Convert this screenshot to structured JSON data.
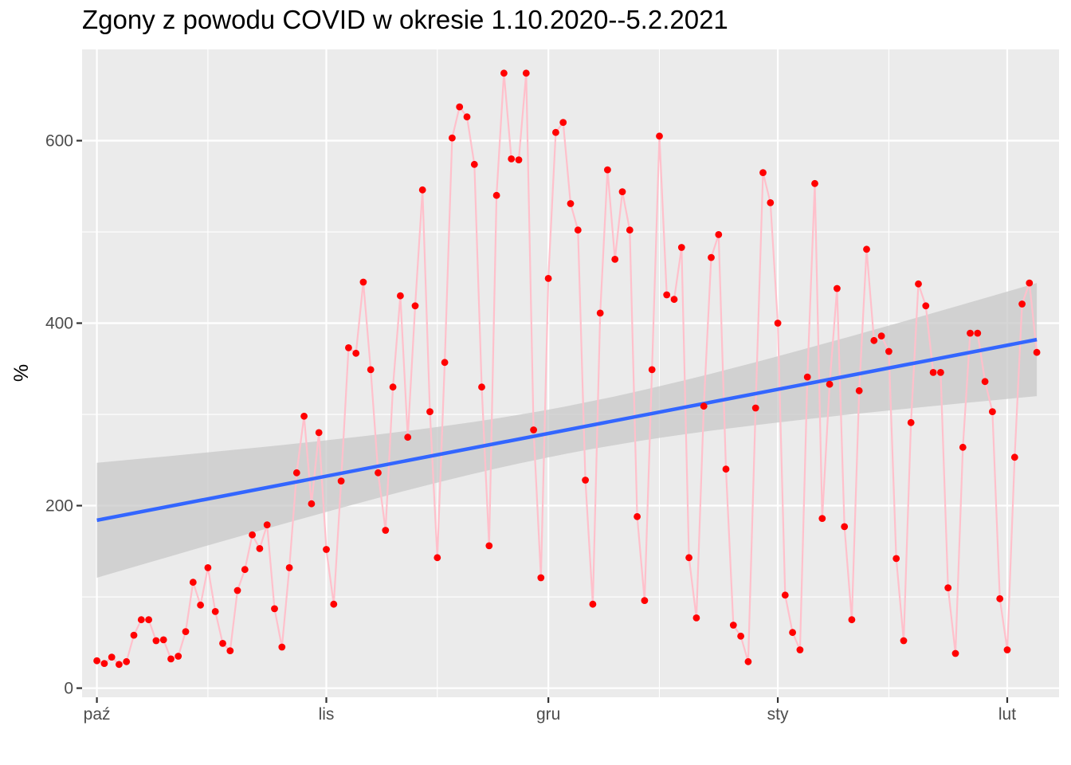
{
  "chart_data": {
    "type": "line",
    "title": "Zgony z powodu COVID w okresie 1.10.2020--5.2.2021",
    "xlabel": "",
    "ylabel": "%",
    "x_start": "2020-10-01",
    "x_end": "2021-02-05",
    "xlim": [
      "2020-09-29",
      "2021-02-08"
    ],
    "ylim": [
      -10,
      700
    ],
    "grid": true,
    "legend": "none",
    "x_ticks": [
      {
        "date": "2020-10-01",
        "label": "paź"
      },
      {
        "date": "2020-11-01",
        "label": "lis"
      },
      {
        "date": "2020-12-01",
        "label": "gru"
      },
      {
        "date": "2021-01-01",
        "label": "sty"
      },
      {
        "date": "2021-02-01",
        "label": "lut"
      }
    ],
    "x_minor_ticks": [
      "2020-10-16",
      "2020-11-16",
      "2020-12-16",
      "2021-01-16"
    ],
    "y_ticks": [
      0,
      200,
      400,
      600
    ],
    "y_minor_ticks": [
      100,
      300,
      500
    ],
    "colors": {
      "points": "#ff0000",
      "line": "#ffc0cb",
      "trend": "#3366ff",
      "band": "#c8c8c8",
      "panel": "#ebebeb",
      "grid": "#ffffff"
    },
    "series": [
      {
        "values": [
          30,
          27,
          34,
          26,
          29,
          58,
          75,
          75,
          52,
          53,
          32,
          35,
          62,
          116,
          91,
          132,
          84,
          49,
          41,
          107,
          130,
          168,
          153,
          179,
          87,
          45,
          132,
          236,
          298,
          202,
          280,
          152,
          92,
          227,
          373,
          367,
          445,
          349,
          236,
          173,
          330,
          430,
          275,
          419,
          546,
          303,
          143,
          357,
          603,
          637,
          626,
          574,
          330,
          156,
          540,
          674,
          580,
          579,
          674,
          283,
          121,
          449,
          609,
          620,
          531,
          502,
          228,
          92,
          411,
          568,
          470,
          544,
          502,
          188,
          96,
          349,
          605,
          431,
          426,
          483,
          143,
          77,
          309,
          472,
          497,
          240,
          69,
          57,
          29,
          307,
          565,
          532,
          400,
          102,
          61,
          42,
          341,
          553,
          186,
          333,
          438,
          177,
          75,
          326,
          481,
          381,
          386,
          369,
          142,
          52,
          291,
          443,
          419,
          346,
          346,
          110,
          38,
          264,
          389,
          389,
          336,
          303,
          98,
          42,
          253,
          421,
          444,
          368
        ]
      }
    ],
    "trend": {
      "start_value": 184,
      "end_value": 382,
      "band_lower": [
        121,
        320
      ],
      "band_upper": [
        247,
        444
      ]
    }
  }
}
